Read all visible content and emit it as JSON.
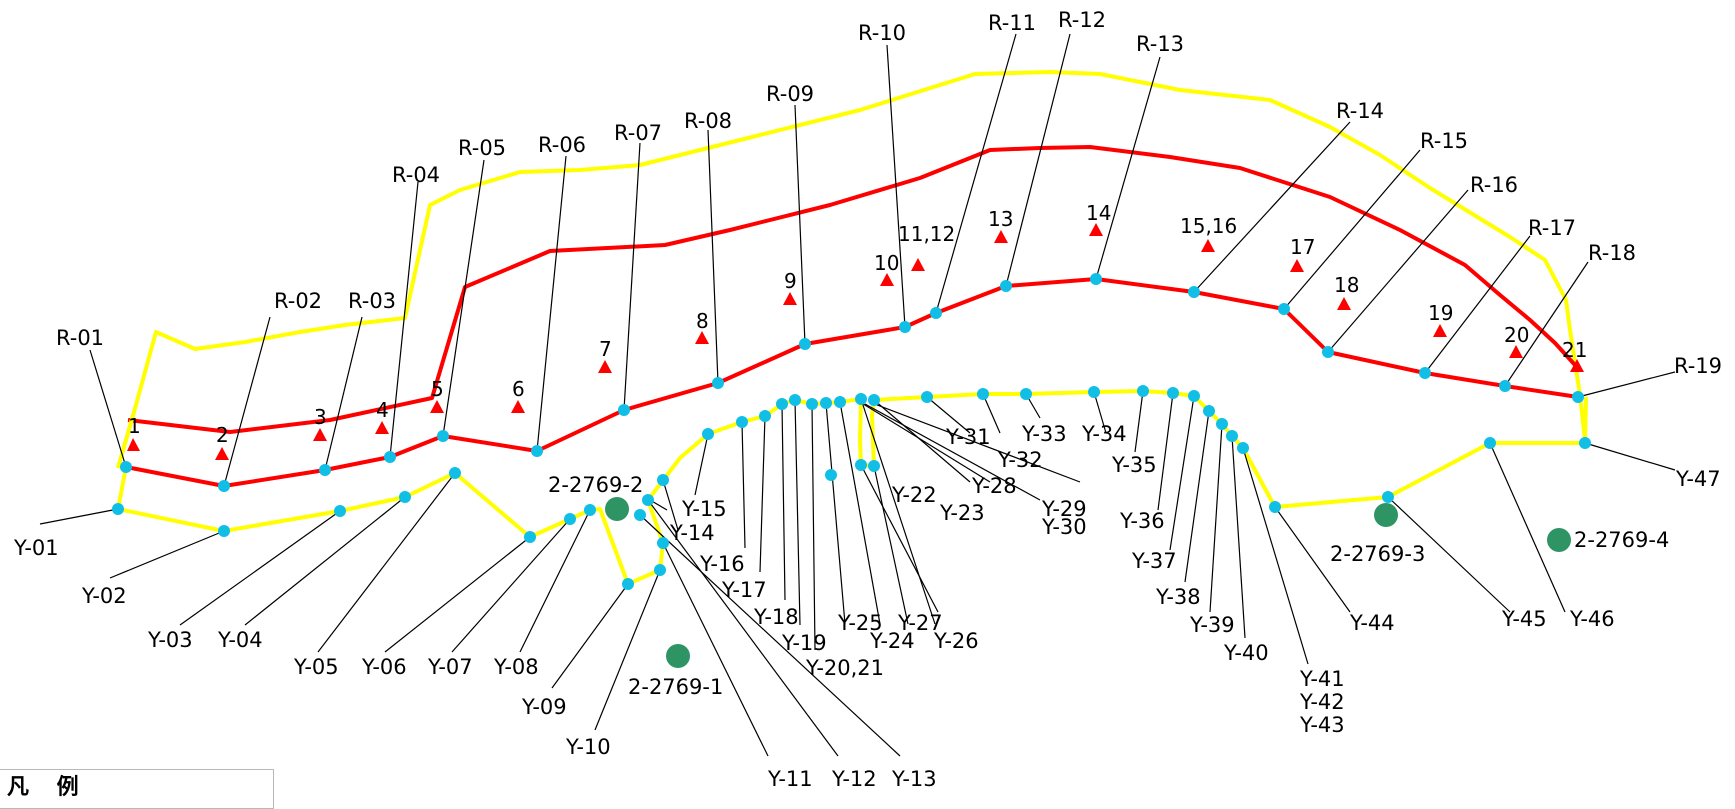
{
  "colors": {
    "yellow_line": "#ffff00",
    "red_line": "#ff0000",
    "point_dot": "#11bfe6",
    "reference_marker": "#ff0000",
    "boundary_point": "#2e9463"
  },
  "r_labels": [
    "R-01",
    "R-02",
    "R-03",
    "R-04",
    "R-05",
    "R-06",
    "R-07",
    "R-08",
    "R-09",
    "R-10",
    "R-11",
    "R-12",
    "R-13",
    "R-14",
    "R-15",
    "R-16",
    "R-17",
    "R-18",
    "R-19"
  ],
  "y_labels": {
    "y01": "Y-01",
    "y02": "Y-02",
    "y03": "Y-03",
    "y04": "Y-04",
    "y05": "Y-05",
    "y06": "Y-06",
    "y07": "Y-07",
    "y08": "Y-08",
    "y09": "Y-09",
    "y10": "Y-10",
    "y11": "Y-11",
    "y12": "Y-12",
    "y13": "Y-13",
    "y14": "Y-14",
    "y15": "Y-15",
    "y16": "Y-16",
    "y17": "Y-17",
    "y18": "Y-18",
    "y19": "Y-19",
    "y20_21": "Y-20,21",
    "y22": "Y-22",
    "y23": "Y-23",
    "y24": "Y-24",
    "y25": "Y-25",
    "y26": "Y-26",
    "y27": "Y-27",
    "y28": "Y-28",
    "y29": "Y-29",
    "y30": "Y-30",
    "y31": "Y-31",
    "y32": "Y-32",
    "y33": "Y-33",
    "y34": "Y-34",
    "y35": "Y-35",
    "y36": "Y-36",
    "y37": "Y-37",
    "y38": "Y-38",
    "y39": "Y-39",
    "y40": "Y-40",
    "y41": "Y-41",
    "y42": "Y-42",
    "y43": "Y-43",
    "y44": "Y-44",
    "y45": "Y-45",
    "y46": "Y-46",
    "y47": "Y-47"
  },
  "triangle_labels": [
    "1",
    "2",
    "3",
    "4",
    "5",
    "6",
    "7",
    "8",
    "9",
    "10",
    "11,12",
    "13",
    "14",
    "15,16",
    "17",
    "18",
    "19",
    "20",
    "21"
  ],
  "boundary_labels": {
    "b1": "2-2769-1",
    "b2": "2-2769-2",
    "b3": "2-2769-3",
    "b4": "2-2769-4"
  },
  "legend": {
    "title": "凡 例"
  }
}
